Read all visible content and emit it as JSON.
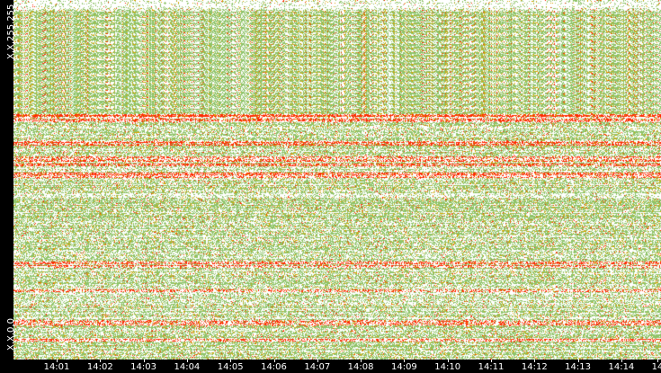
{
  "chart_data": {
    "type": "heatmap",
    "title": "",
    "xlabel": "",
    "ylabel": "",
    "y_tick_labels": [
      "X.X.255.255",
      "X.X.0.0"
    ],
    "x_tick_labels": [
      "14:01",
      "14:02",
      "14:03",
      "14:04",
      "14:05",
      "14:06",
      "14:07",
      "14:08",
      "14:09",
      "14:10",
      "14:11",
      "14:12",
      "14:13",
      "14:14",
      "14"
    ],
    "x_range": [
      "14:00:30",
      "14:15:00"
    ],
    "y_range": [
      "X.X.0.0",
      "X.X.255.255"
    ],
    "colors": {
      "background": "#ffffff",
      "low": "#8fc46a",
      "mid": "#d9a400",
      "high": "#ff2a00",
      "axis_background": "#000000",
      "axis_text": "#ffffff"
    }
  }
}
